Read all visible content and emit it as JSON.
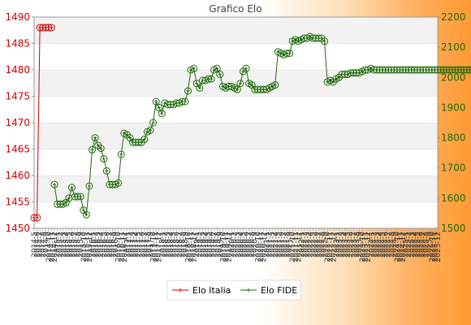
{
  "chart_data": {
    "type": "line",
    "title": "Grafico Elo",
    "x_tick_labels": [
      "2014-5",
      "2014-6",
      "2014-7",
      "2014-8",
      "2014-9",
      "2014-10",
      "2014-11",
      "2014-12",
      "2015-1",
      "2015-2",
      "2015-3",
      "2015-4",
      "2015-5",
      "2015-6",
      "2015-7",
      "2015-8",
      "2015-9",
      "2015-10",
      "2015-11",
      "2015-12",
      "2016-1",
      "2016-2",
      "2016-3",
      "2016-4",
      "2016-5",
      "2016-6",
      "2016-7",
      "2016-8",
      "2016-9",
      "2016-10",
      "2016-11",
      "2016-12",
      "2017-1",
      "2017-2",
      "2017-3",
      "2017-4",
      "2017-5",
      "2017-6",
      "2017-7",
      "2017-8",
      "2017-9",
      "2017-10",
      "2017-11",
      "2017-12",
      "2018-1",
      "2018-2",
      "2018-3",
      "2018-4",
      "2018-5",
      "2018-6",
      "2018-7",
      "2018-8",
      "2018-9",
      "2018-10",
      "2018-11",
      "2018-12",
      "2019-1",
      "2019-2",
      "2019-3",
      "2019-4",
      "2019-5",
      "2019-6",
      "2019-7",
      "2019-8",
      "2019-9",
      "2019-10",
      "2019-11",
      "2019-12",
      "2020-1",
      "2020-2",
      "2020-3",
      "2020-4",
      "2020-5",
      "2020-6",
      "2020-7",
      "2020-8",
      "2020-9",
      "2020-10",
      "2020-11",
      "2020-12",
      "2021-1",
      "2021-2",
      "2021-3",
      "2021-4",
      "2021-5",
      "2021-6",
      "2021-7",
      "2021-8",
      "2021-9",
      "2021-10",
      "2021-11",
      "2021-12",
      "2022-1",
      "2022-2",
      "2022-3",
      "2022-4",
      "2022-5",
      "2022-6",
      "2022-7",
      "2022-8",
      "2022-9",
      "2022-10",
      "2022-11",
      "2022-12",
      "2023-1",
      "2023-2",
      "2023-3",
      "2023-4",
      "2023-5",
      "2023-6",
      "2023-7",
      "2023-8",
      "2023-9",
      "2023-10",
      "2023-11",
      "2023-12",
      "2024-1",
      "2024-2",
      "2024-3",
      "2024-4",
      "2024-5",
      "2024-6",
      "2024-7",
      "2024-8",
      "2024-9",
      "2024-10",
      "2024-11",
      "2024-12",
      "2025-1",
      "2025-2",
      "2025-3",
      "2025-4",
      "2025-5",
      "2025-6",
      "2025-7",
      "2025-8",
      "2025-9",
      "2025-10",
      "2025-11",
      "2025-12"
    ],
    "y_left": {
      "min": 1450,
      "max": 1490,
      "ticks": [
        1450,
        1455,
        1460,
        1465,
        1470,
        1475,
        1480,
        1485,
        1490
      ],
      "tick_labels": [
        "1450",
        "1455",
        "1460",
        "1465",
        "1470",
        "1475",
        "1480",
        "1485",
        "1490"
      ]
    },
    "y_right": {
      "min": 1500,
      "max": 2200,
      "ticks": [
        1500,
        1600,
        1700,
        1800,
        1900,
        2000,
        2100,
        2200
      ],
      "tick_labels": [
        "1500",
        "1600",
        "1700",
        "1800",
        "1900",
        "2000",
        "2100",
        "2200"
      ]
    },
    "grid": "horizontal bands",
    "legend_position": "bottom",
    "series": [
      {
        "name": "Elo Italia",
        "axis": "left",
        "color": "#cc0000",
        "marker": "open-circle",
        "values": [
          1452,
          1452,
          1488,
          1488,
          1488,
          1488,
          1488
        ]
      },
      {
        "name": "Elo FIDE",
        "axis": "right",
        "color": "#1f6a0a",
        "marker": "open-circle",
        "values": [
          null,
          null,
          null,
          null,
          null,
          null,
          null,
          1645,
          1580,
          1580,
          1580,
          1585,
          1600,
          1635,
          1605,
          1605,
          1605,
          1560,
          1545,
          1640,
          1760,
          1800,
          1775,
          1765,
          1730,
          1690,
          1645,
          1645,
          1645,
          1650,
          1745,
          1815,
          1810,
          1800,
          1785,
          1785,
          1785,
          1785,
          1795,
          1820,
          1825,
          1850,
          1920,
          1900,
          1880,
          1915,
          1910,
          1910,
          1910,
          1915,
          1915,
          1920,
          1920,
          1955,
          2025,
          2030,
          1980,
          1965,
          1990,
          1990,
          1995,
          1995,
          2025,
          2030,
          2010,
          1970,
          1965,
          1970,
          1970,
          1965,
          1960,
          1980,
          2020,
          2030,
          1980,
          1975,
          1960,
          1960,
          1960,
          1960,
          1960,
          1965,
          1970,
          1975,
          2085,
          2080,
          2075,
          2080,
          2080,
          2120,
          2125,
          2120,
          2125,
          2130,
          2130,
          2135,
          2130,
          2130,
          2130,
          2130,
          2120,
          1985,
          1990,
          1985,
          1995,
          2000,
          2010,
          2010,
          2010,
          2015,
          2015,
          2015,
          2015,
          2020,
          2025,
          2025,
          2030,
          2025,
          2025,
          2025,
          2025,
          2025,
          2025,
          2025,
          2025,
          2025,
          2025,
          2025,
          2025,
          2025,
          2025,
          2025,
          2025,
          2025,
          2025,
          2025,
          2025,
          2025,
          2025,
          2025,
          2025,
          2025,
          2025,
          2025,
          2025,
          2025,
          2025,
          2025,
          2025,
          2025,
          2025,
          2025,
          2025
        ]
      }
    ]
  }
}
